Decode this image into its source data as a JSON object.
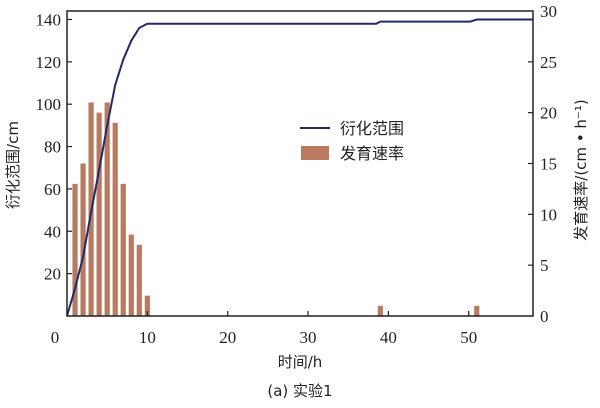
{
  "chart_data": {
    "type": "bar+line",
    "title": "",
    "caption": "(a) 实验1",
    "xlabel": "时间/h",
    "ylabel_left": "衍化范围/cm",
    "ylabel_right": "发育速率/(cm • h⁻¹)",
    "xlim": [
      0,
      58
    ],
    "ylim_left": [
      0,
      144
    ],
    "ylim_right": [
      0,
      30
    ],
    "x_ticks": [
      0,
      10,
      20,
      30,
      40,
      50
    ],
    "y_ticks_left": [
      20,
      40,
      60,
      80,
      100,
      120,
      140
    ],
    "y_ticks_right": [
      0,
      5,
      10,
      15,
      20,
      25,
      30
    ],
    "grid": false,
    "legend_position": "center-right",
    "colors": {
      "line": "#1f2a6b",
      "bar": "#b97a60",
      "axis": "#222222"
    },
    "series": [
      {
        "name": "衍化范围",
        "type": "line",
        "axis": "left",
        "x": [
          0,
          1,
          2,
          3,
          4,
          5,
          6,
          7,
          8,
          9,
          10,
          38.5,
          39,
          50.2,
          51,
          58
        ],
        "values": [
          0,
          13,
          28,
          49,
          69,
          90,
          109,
          121,
          130,
          136,
          138,
          138,
          139,
          139,
          140,
          140
        ]
      },
      {
        "name": "发育速率",
        "type": "bar",
        "axis": "right",
        "x": [
          1,
          2,
          3,
          4,
          5,
          6,
          7,
          8,
          9,
          10,
          39,
          51
        ],
        "values": [
          13,
          15,
          21,
          20,
          21,
          19,
          13,
          8,
          7,
          2,
          1,
          1
        ]
      }
    ]
  },
  "labels": {
    "x_ticks": [
      "0",
      "10",
      "20",
      "30",
      "40",
      "50"
    ],
    "y_left": [
      "140",
      "120",
      "100",
      "80",
      "60",
      "40",
      "20"
    ],
    "y_right": [
      "30",
      "25",
      "20",
      "15",
      "10",
      "5",
      "0"
    ]
  }
}
